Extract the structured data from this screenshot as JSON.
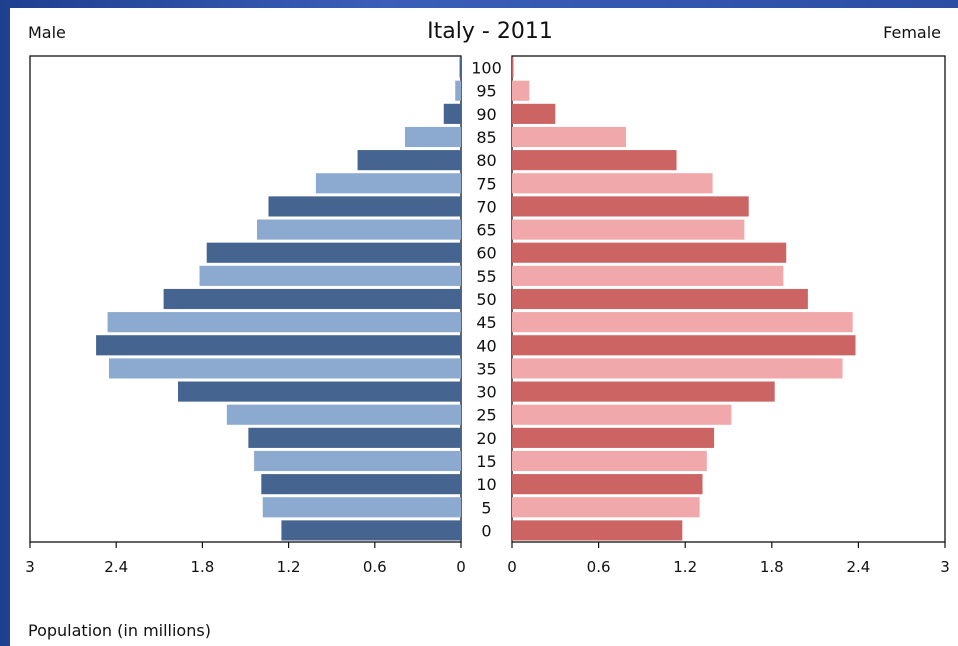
{
  "chart_data": {
    "type": "bar",
    "title": "Italy - 2011",
    "left_label": "Male",
    "right_label": "Female",
    "xlabel": "Population (in millions)",
    "xlim": [
      0,
      3
    ],
    "x_ticks": [
      "3",
      "2.4",
      "1.8",
      "1.2",
      "0.6",
      "0"
    ],
    "x_ticks_right": [
      "0",
      "0.6",
      "1.2",
      "1.8",
      "2.4",
      "3"
    ],
    "categories": [
      "100",
      "95",
      "90",
      "85",
      "80",
      "75",
      "70",
      "65",
      "60",
      "55",
      "50",
      "45",
      "40",
      "35",
      "30",
      "25",
      "20",
      "15",
      "10",
      "5",
      "0"
    ],
    "series": [
      {
        "name": "Male",
        "values": [
          0.01,
          0.04,
          0.12,
          0.39,
          0.72,
          1.01,
          1.34,
          1.42,
          1.77,
          1.82,
          2.07,
          2.46,
          2.54,
          2.45,
          1.97,
          1.63,
          1.48,
          1.44,
          1.39,
          1.38,
          1.25
        ]
      },
      {
        "name": "Female",
        "values": [
          0.01,
          0.12,
          0.3,
          0.79,
          1.14,
          1.39,
          1.64,
          1.61,
          1.9,
          1.88,
          2.05,
          2.36,
          2.38,
          2.29,
          1.82,
          1.52,
          1.4,
          1.35,
          1.32,
          1.3,
          1.18
        ]
      }
    ],
    "colors": {
      "male_dark": "#456590",
      "male_light": "#8ca9cf",
      "female_dark": "#cc6464",
      "female_light": "#f0a8aa"
    }
  }
}
